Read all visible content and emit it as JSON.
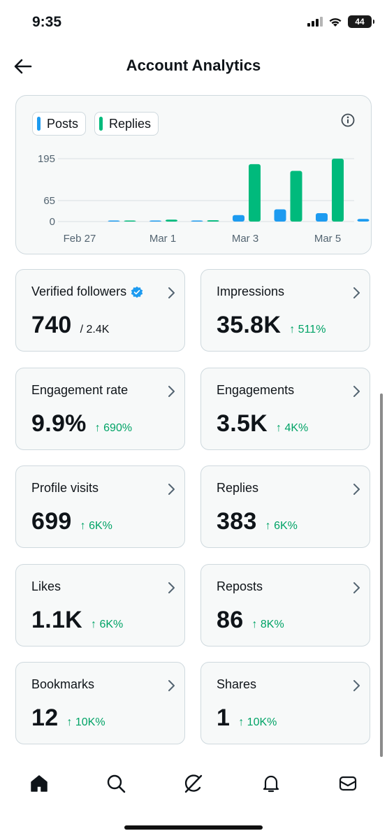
{
  "status_bar": {
    "time": "9:35",
    "battery": "44"
  },
  "header": {
    "title": "Account Analytics"
  },
  "chart": {
    "legend": [
      {
        "label": "Posts",
        "color": "#1d9bf0"
      },
      {
        "label": "Replies",
        "color": "#00ba7c"
      }
    ],
    "info_icon": "info-icon"
  },
  "chart_data": {
    "type": "bar",
    "categories": [
      "Feb 27",
      "Feb 28",
      "Mar 1",
      "Mar 2",
      "Mar 3",
      "Mar 4",
      "Mar 5"
    ],
    "x_tick_labels": [
      "Feb 27",
      "Mar 1",
      "Mar 3",
      "Mar 5"
    ],
    "series": [
      {
        "name": "Posts",
        "color": "#1d9bf0",
        "values": [
          0,
          1,
          1,
          20,
          38,
          26,
          8
        ]
      },
      {
        "name": "Replies",
        "color": "#00ba7c",
        "values": [
          0,
          6,
          4,
          178,
          157,
          195,
          91
        ]
      }
    ],
    "y_ticks": [
      0,
      65,
      195
    ],
    "ylim": [
      0,
      195
    ],
    "grid": true,
    "legend_position": "top-left"
  },
  "metrics": [
    {
      "label": "Verified followers",
      "value": "740",
      "sub": "/ 2.4K",
      "change": "",
      "verified": true
    },
    {
      "label": "Impressions",
      "value": "35.8K",
      "sub": "",
      "change": "↑ 511%"
    },
    {
      "label": "Engagement rate",
      "value": "9.9%",
      "sub": "",
      "change": "↑ 690%"
    },
    {
      "label": "Engagements",
      "value": "3.5K",
      "sub": "",
      "change": "↑ 4K%"
    },
    {
      "label": "Profile visits",
      "value": "699",
      "sub": "",
      "change": "↑ 6K%"
    },
    {
      "label": "Replies",
      "value": "383",
      "sub": "",
      "change": "↑ 6K%"
    },
    {
      "label": "Likes",
      "value": "1.1K",
      "sub": "",
      "change": "↑ 6K%"
    },
    {
      "label": "Reposts",
      "value": "86",
      "sub": "",
      "change": "↑ 8K%"
    },
    {
      "label": "Bookmarks",
      "value": "12",
      "sub": "",
      "change": "↑ 10K%"
    },
    {
      "label": "Shares",
      "value": "1",
      "sub": "",
      "change": "↑ 10K%"
    }
  ],
  "tab_bar": [
    {
      "icon": "home-icon"
    },
    {
      "icon": "search-icon"
    },
    {
      "icon": "grok-icon"
    },
    {
      "icon": "bell-icon"
    },
    {
      "icon": "mail-icon"
    }
  ]
}
